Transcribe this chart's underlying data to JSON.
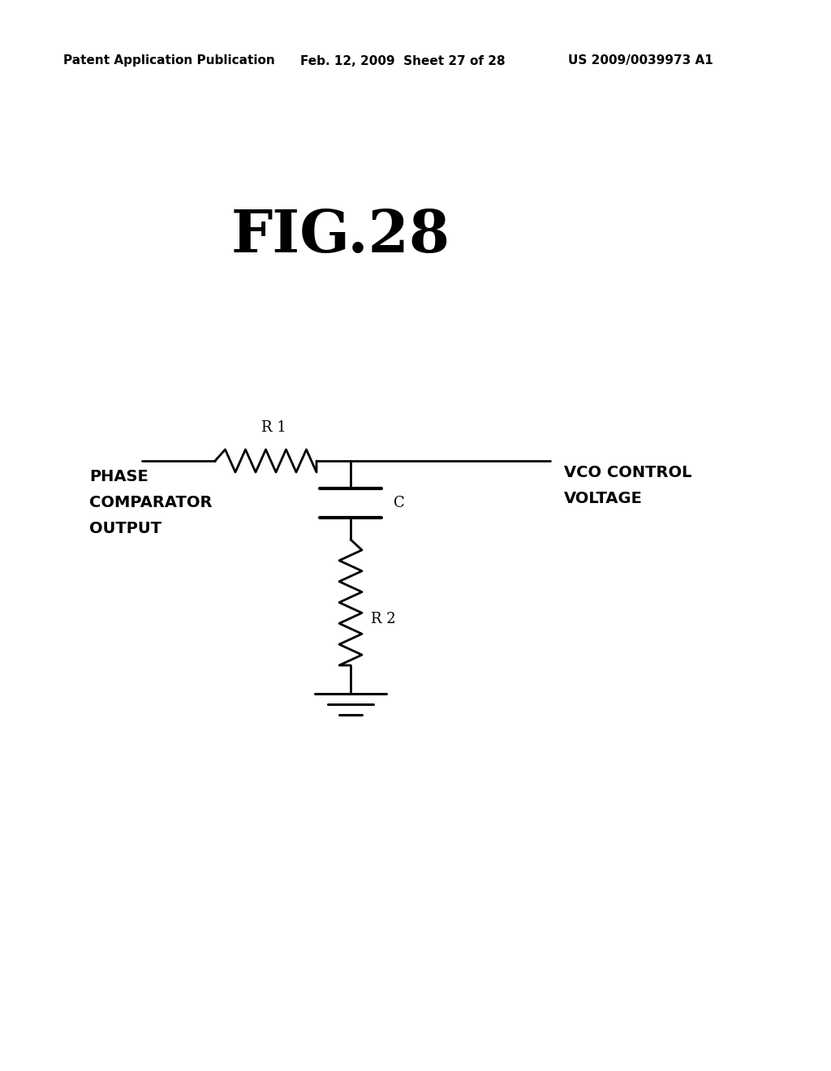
{
  "title": "FIG.28",
  "header_left": "Patent Application Publication",
  "header_mid": "Feb. 12, 2009  Sheet 27 of 28",
  "header_right": "US 2009/0039973 A1",
  "background_color": "#ffffff",
  "line_color": "#000000",
  "title_fontsize": 52,
  "header_fontsize": 11,
  "label_fontsize": 14,
  "component_label_fontsize": 13,
  "phase_label": [
    "PHASE",
    "COMPARATOR",
    "OUTPUT"
  ],
  "vco_label": [
    "VCO CONTROL",
    "VOLTAGE"
  ],
  "r1_label": "R 1",
  "r2_label": "R 2",
  "c_label": "C"
}
